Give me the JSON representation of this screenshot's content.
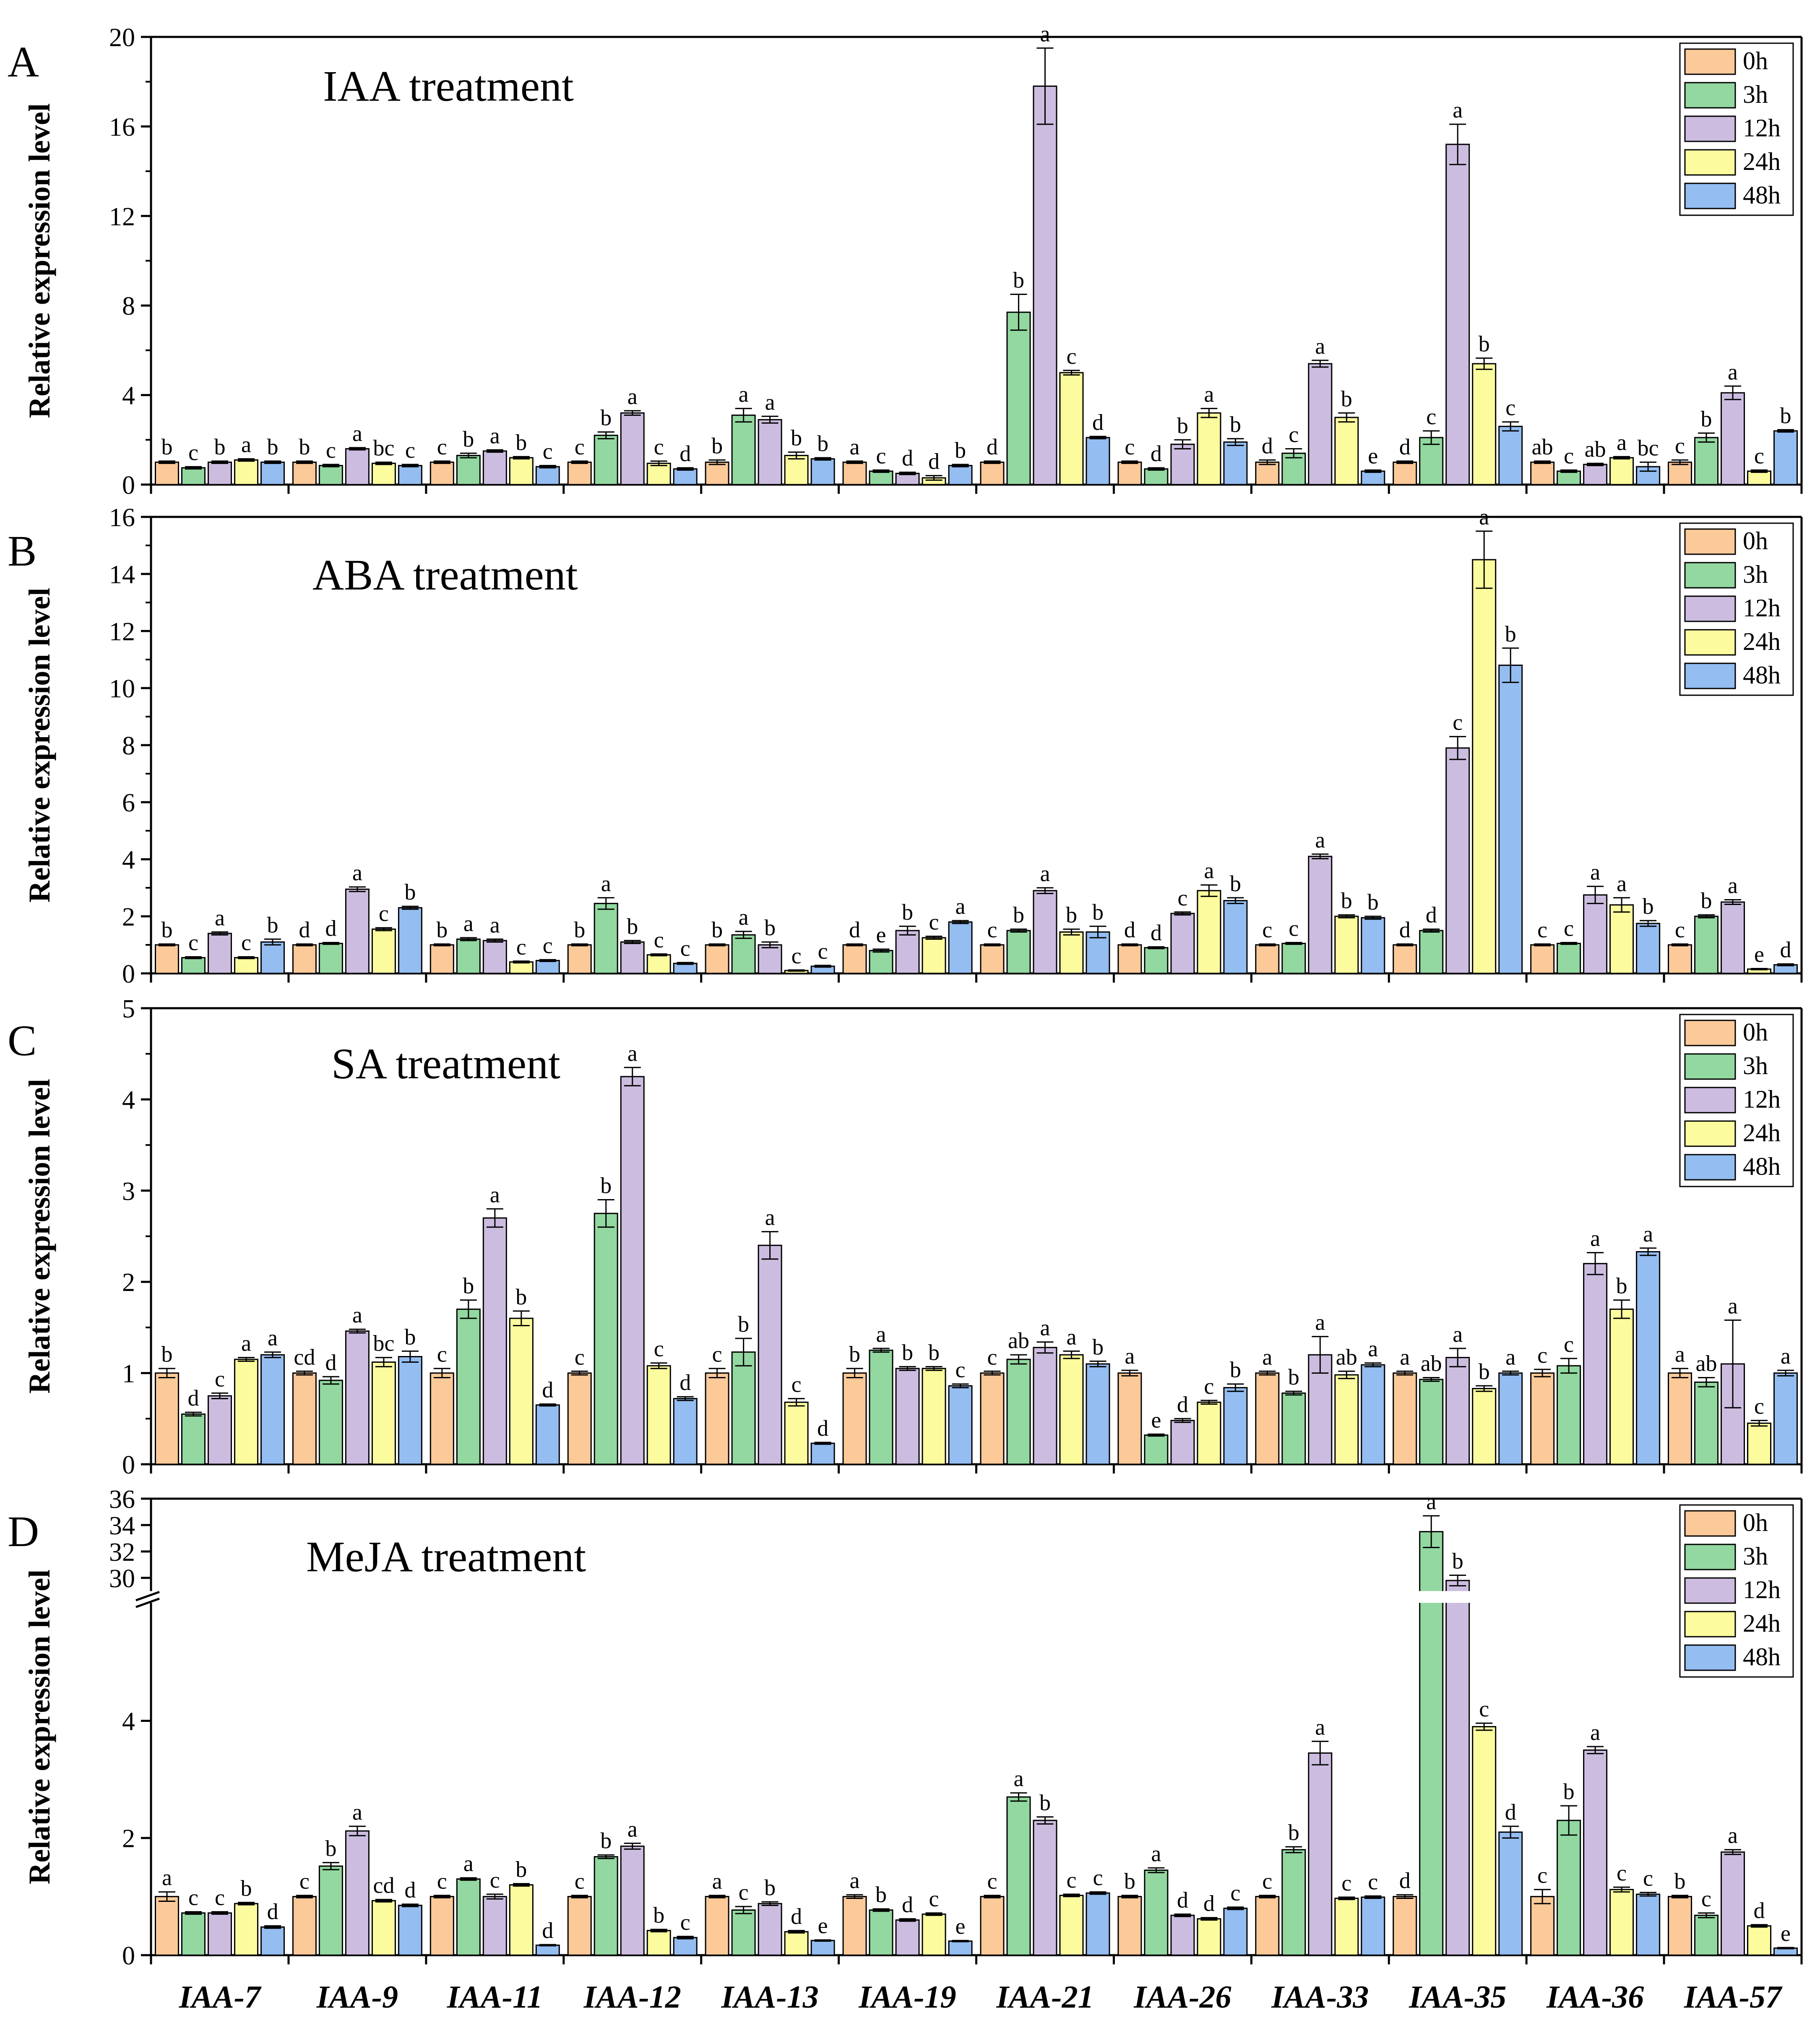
{
  "figure": {
    "categories": [
      "IAA-7",
      "IAA-9",
      "IAA-11",
      "IAA-12",
      "IAA-13",
      "IAA-19",
      "IAA-21",
      "IAA-26",
      "IAA-33",
      "IAA-35",
      "IAA-36",
      "IAA-57"
    ],
    "legend": [
      "0h",
      "3h",
      "12h",
      "24h",
      "48h"
    ],
    "colors": [
      "#fcc999",
      "#92d8a0",
      "#ccbde0",
      "#fcfc9e",
      "#94bdf1"
    ],
    "ylabel": "Relative expression level"
  },
  "chart_data": [
    {
      "type": "bar",
      "panel": "A",
      "title": "IAA treatment",
      "ylabel": "Relative expression level",
      "ylim": [
        0,
        20
      ],
      "yticks": [
        0,
        4,
        8,
        12,
        16,
        20
      ],
      "categories": [
        "IAA-7",
        "IAA-9",
        "IAA-11",
        "IAA-12",
        "IAA-13",
        "IAA-19",
        "IAA-21",
        "IAA-26",
        "IAA-33",
        "IAA-35",
        "IAA-36",
        "IAA-57"
      ],
      "series": [
        {
          "name": "0h",
          "values": [
            1.0,
            1.0,
            1.0,
            1.0,
            1.0,
            1.0,
            1.0,
            1.0,
            1.0,
            1.0,
            1.0,
            1.0
          ],
          "errors": [
            0.05,
            0.05,
            0.05,
            0.05,
            0.1,
            0.05,
            0.05,
            0.05,
            0.1,
            0.05,
            0.05,
            0.1
          ]
        },
        {
          "name": "3h",
          "values": [
            0.75,
            0.85,
            1.3,
            2.2,
            3.1,
            0.6,
            7.7,
            0.7,
            1.4,
            2.1,
            0.6,
            2.1
          ],
          "errors": [
            0.05,
            0.05,
            0.1,
            0.15,
            0.3,
            0.05,
            0.8,
            0.05,
            0.2,
            0.3,
            0.05,
            0.2
          ]
        },
        {
          "name": "12h",
          "values": [
            1.0,
            1.6,
            1.5,
            3.2,
            2.9,
            0.5,
            17.8,
            1.8,
            5.4,
            15.2,
            0.9,
            4.1
          ],
          "errors": [
            0.05,
            0.05,
            0.05,
            0.1,
            0.15,
            0.05,
            1.7,
            0.2,
            0.15,
            0.9,
            0.05,
            0.3
          ]
        },
        {
          "name": "24h",
          "values": [
            1.1,
            0.95,
            1.2,
            0.95,
            1.3,
            0.3,
            5.0,
            3.2,
            3.0,
            5.4,
            1.2,
            0.6
          ],
          "errors": [
            0.05,
            0.05,
            0.05,
            0.1,
            0.15,
            0.1,
            0.1,
            0.2,
            0.2,
            0.25,
            0.05,
            0.05
          ]
        },
        {
          "name": "48h",
          "values": [
            1.0,
            0.85,
            0.8,
            0.7,
            1.15,
            0.85,
            2.1,
            1.9,
            0.6,
            2.6,
            0.8,
            2.4
          ],
          "errors": [
            0.05,
            0.05,
            0.05,
            0.05,
            0.05,
            0.05,
            0.05,
            0.15,
            0.05,
            0.2,
            0.2,
            0.05
          ]
        }
      ],
      "letters": [
        [
          "b",
          "c",
          "b",
          "a",
          "b"
        ],
        [
          "b",
          "c",
          "a",
          "bc",
          "c"
        ],
        [
          "c",
          "b",
          "a",
          "b",
          "c"
        ],
        [
          "c",
          "b",
          "a",
          "c",
          "d"
        ],
        [
          "b",
          "a",
          "a",
          "b",
          "b"
        ],
        [
          "a",
          "c",
          "d",
          "d",
          "b"
        ],
        [
          "d",
          "b",
          "a",
          "c",
          "d"
        ],
        [
          "c",
          "d",
          "b",
          "a",
          "b"
        ],
        [
          "d",
          "c",
          "a",
          "b",
          "e"
        ],
        [
          "d",
          "c",
          "a",
          "b",
          "c"
        ],
        [
          "ab",
          "c",
          "ab",
          "a",
          "bc"
        ],
        [
          "c",
          "b",
          "a",
          "c",
          "b"
        ]
      ]
    },
    {
      "type": "bar",
      "panel": "B",
      "title": "ABA treatment",
      "ylabel": "Relative expression level",
      "ylim": [
        0,
        16
      ],
      "yticks": [
        0,
        2,
        4,
        6,
        8,
        10,
        12,
        14,
        16
      ],
      "categories": [
        "IAA-7",
        "IAA-9",
        "IAA-11",
        "IAA-12",
        "IAA-13",
        "IAA-19",
        "IAA-21",
        "IAA-26",
        "IAA-33",
        "IAA-35",
        "IAA-36",
        "IAA-57"
      ],
      "series": [
        {
          "name": "0h",
          "values": [
            1.0,
            1.0,
            1.0,
            1.0,
            1.0,
            1.0,
            1.0,
            1.0,
            1.0,
            1.0,
            1.0,
            1.0
          ],
          "errors": [
            0.03,
            0.03,
            0.03,
            0.03,
            0.03,
            0.03,
            0.03,
            0.03,
            0.03,
            0.03,
            0.03,
            0.03
          ]
        },
        {
          "name": "3h",
          "values": [
            0.55,
            1.05,
            1.2,
            2.45,
            1.35,
            0.8,
            1.5,
            0.9,
            1.05,
            1.5,
            1.05,
            2.0
          ],
          "errors": [
            0.03,
            0.03,
            0.05,
            0.2,
            0.12,
            0.05,
            0.05,
            0.03,
            0.03,
            0.05,
            0.03,
            0.05
          ]
        },
        {
          "name": "12h",
          "values": [
            1.4,
            2.95,
            1.15,
            1.1,
            1.0,
            1.5,
            2.9,
            2.1,
            4.1,
            7.9,
            2.75,
            2.5
          ],
          "errors": [
            0.05,
            0.08,
            0.05,
            0.05,
            0.1,
            0.15,
            0.1,
            0.05,
            0.08,
            0.4,
            0.3,
            0.08
          ]
        },
        {
          "name": "24h",
          "values": [
            0.55,
            1.55,
            0.4,
            0.65,
            0.1,
            1.25,
            1.45,
            2.9,
            2.0,
            14.5,
            2.4,
            0.15
          ],
          "errors": [
            0.03,
            0.05,
            0.03,
            0.03,
            0.02,
            0.05,
            0.1,
            0.2,
            0.05,
            1.0,
            0.25,
            0.02
          ]
        },
        {
          "name": "48h",
          "values": [
            1.1,
            2.3,
            0.45,
            0.35,
            0.25,
            1.8,
            1.45,
            2.55,
            1.95,
            10.8,
            1.75,
            0.3
          ],
          "errors": [
            0.1,
            0.05,
            0.03,
            0.03,
            0.03,
            0.05,
            0.2,
            0.1,
            0.05,
            0.6,
            0.1,
            0.03
          ]
        }
      ],
      "letters": [
        [
          "b",
          "c",
          "a",
          "c",
          "b"
        ],
        [
          "d",
          "d",
          "a",
          "c",
          "b"
        ],
        [
          "b",
          "a",
          "a",
          "c",
          "c"
        ],
        [
          "b",
          "a",
          "b",
          "c",
          "c"
        ],
        [
          "b",
          "a",
          "b",
          "c",
          "c"
        ],
        [
          "d",
          "e",
          "b",
          "c",
          "a"
        ],
        [
          "c",
          "b",
          "a",
          "b",
          "b"
        ],
        [
          "d",
          "d",
          "c",
          "a",
          "b"
        ],
        [
          "c",
          "c",
          "a",
          "b",
          "b"
        ],
        [
          "d",
          "d",
          "c",
          "a",
          "b"
        ],
        [
          "c",
          "c",
          "a",
          "a",
          "b"
        ],
        [
          "c",
          "b",
          "a",
          "e",
          "d"
        ]
      ]
    },
    {
      "type": "bar",
      "panel": "C",
      "title": "SA treatment",
      "ylabel": "Relative expression level",
      "ylim": [
        0,
        5
      ],
      "yticks": [
        0,
        1,
        2,
        3,
        4,
        5
      ],
      "categories": [
        "IAA-7",
        "IAA-9",
        "IAA-11",
        "IAA-12",
        "IAA-13",
        "IAA-19",
        "IAA-21",
        "IAA-26",
        "IAA-33",
        "IAA-35",
        "IAA-36",
        "IAA-57"
      ],
      "series": [
        {
          "name": "0h",
          "values": [
            1.0,
            1.0,
            1.0,
            1.0,
            1.0,
            1.0,
            1.0,
            1.0,
            1.0,
            1.0,
            1.0,
            1.0
          ],
          "errors": [
            0.05,
            0.02,
            0.05,
            0.02,
            0.05,
            0.05,
            0.02,
            0.03,
            0.02,
            0.02,
            0.04,
            0.05
          ]
        },
        {
          "name": "3h",
          "values": [
            0.55,
            0.92,
            1.7,
            2.75,
            1.23,
            1.25,
            1.15,
            0.32,
            0.78,
            0.93,
            1.08,
            0.9
          ],
          "errors": [
            0.02,
            0.04,
            0.1,
            0.15,
            0.15,
            0.02,
            0.05,
            0.01,
            0.02,
            0.02,
            0.08,
            0.05
          ]
        },
        {
          "name": "12h",
          "values": [
            0.75,
            1.46,
            2.7,
            4.25,
            2.4,
            1.05,
            1.28,
            0.48,
            1.2,
            1.17,
            2.2,
            1.1
          ],
          "errors": [
            0.03,
            0.02,
            0.1,
            0.1,
            0.15,
            0.02,
            0.06,
            0.02,
            0.2,
            0.1,
            0.12,
            0.48
          ]
        },
        {
          "name": "24h",
          "values": [
            1.15,
            1.12,
            1.6,
            1.08,
            0.68,
            1.05,
            1.2,
            0.68,
            0.98,
            0.83,
            1.7,
            0.45
          ],
          "errors": [
            0.02,
            0.05,
            0.08,
            0.03,
            0.04,
            0.02,
            0.04,
            0.02,
            0.04,
            0.03,
            0.1,
            0.03
          ]
        },
        {
          "name": "48h",
          "values": [
            1.2,
            1.18,
            0.65,
            0.72,
            0.23,
            0.86,
            1.1,
            0.84,
            1.09,
            1.0,
            2.33,
            1.0
          ],
          "errors": [
            0.03,
            0.06,
            0.01,
            0.02,
            0.01,
            0.02,
            0.03,
            0.04,
            0.02,
            0.02,
            0.04,
            0.03
          ]
        }
      ],
      "letters": [
        [
          "b",
          "d",
          "c",
          "a",
          "a"
        ],
        [
          "cd",
          "d",
          "a",
          "bc",
          "b"
        ],
        [
          "c",
          "b",
          "a",
          "b",
          "d"
        ],
        [
          "c",
          "b",
          "a",
          "c",
          "d"
        ],
        [
          "c",
          "b",
          "a",
          "c",
          "d"
        ],
        [
          "b",
          "a",
          "b",
          "b",
          "c"
        ],
        [
          "c",
          "ab",
          "a",
          "a",
          "b"
        ],
        [
          "a",
          "e",
          "d",
          "c",
          "b"
        ],
        [
          "a",
          "b",
          "a",
          "ab",
          "a"
        ],
        [
          "a",
          "ab",
          "a",
          "b",
          "a"
        ],
        [
          "c",
          "c",
          "a",
          "b",
          "a"
        ],
        [
          "a",
          "ab",
          "a",
          "c",
          "a"
        ]
      ]
    },
    {
      "type": "bar",
      "panel": "D",
      "title": "MeJA treatment",
      "ylabel": "Relative expression level",
      "ylim": [
        0,
        36
      ],
      "axis_break": [
        6,
        29
      ],
      "yticks": [
        0,
        2,
        4,
        30,
        32,
        34,
        36
      ],
      "categories": [
        "IAA-7",
        "IAA-9",
        "IAA-11",
        "IAA-12",
        "IAA-13",
        "IAA-19",
        "IAA-21",
        "IAA-26",
        "IAA-33",
        "IAA-35",
        "IAA-36",
        "IAA-57"
      ],
      "series": [
        {
          "name": "0h",
          "values": [
            1.0,
            1.0,
            1.0,
            1.0,
            1.0,
            1.0,
            1.0,
            1.0,
            1.0,
            1.0,
            1.0,
            1.0
          ],
          "errors": [
            0.08,
            0.02,
            0.02,
            0.02,
            0.02,
            0.03,
            0.02,
            0.02,
            0.02,
            0.03,
            0.12,
            0.02
          ]
        },
        {
          "name": "3h",
          "values": [
            0.72,
            1.52,
            1.3,
            1.68,
            0.77,
            0.77,
            2.7,
            1.45,
            1.8,
            33.5,
            2.3,
            0.68
          ],
          "errors": [
            0.02,
            0.06,
            0.02,
            0.03,
            0.06,
            0.02,
            0.07,
            0.04,
            0.05,
            1.2,
            0.25,
            0.04
          ]
        },
        {
          "name": "12h",
          "values": [
            0.72,
            2.12,
            1.0,
            1.86,
            0.88,
            0.6,
            2.3,
            0.68,
            3.45,
            29.8,
            3.5,
            1.76
          ],
          "errors": [
            0.02,
            0.08,
            0.04,
            0.05,
            0.03,
            0.02,
            0.06,
            0.02,
            0.2,
            0.4,
            0.06,
            0.04
          ]
        },
        {
          "name": "24h",
          "values": [
            0.88,
            0.93,
            1.2,
            0.42,
            0.4,
            0.7,
            1.02,
            0.62,
            0.97,
            3.9,
            1.12,
            0.5
          ],
          "errors": [
            0.02,
            0.02,
            0.02,
            0.02,
            0.02,
            0.02,
            0.02,
            0.02,
            0.02,
            0.06,
            0.04,
            0.02
          ]
        },
        {
          "name": "48h",
          "values": [
            0.48,
            0.85,
            0.17,
            0.3,
            0.25,
            0.24,
            1.06,
            0.8,
            0.99,
            2.1,
            1.04,
            0.12
          ],
          "errors": [
            0.02,
            0.02,
            0.01,
            0.02,
            0.01,
            0.01,
            0.02,
            0.02,
            0.02,
            0.1,
            0.03,
            0.01
          ]
        }
      ],
      "letters": [
        [
          "a",
          "c",
          "c",
          "b",
          "d"
        ],
        [
          "c",
          "b",
          "a",
          "cd",
          "d"
        ],
        [
          "c",
          "a",
          "c",
          "b",
          "d"
        ],
        [
          "c",
          "b",
          "a",
          "b",
          "c"
        ],
        [
          "a",
          "c",
          "b",
          "d",
          "e"
        ],
        [
          "a",
          "b",
          "d",
          "c",
          "e"
        ],
        [
          "c",
          "a",
          "b",
          "c",
          "c"
        ],
        [
          "b",
          "a",
          "d",
          "d",
          "c"
        ],
        [
          "c",
          "b",
          "a",
          "c",
          "c"
        ],
        [
          "d",
          "a",
          "b",
          "c",
          "d"
        ],
        [
          "c",
          "b",
          "a",
          "c",
          "c"
        ],
        [
          "b",
          "c",
          "a",
          "d",
          "e"
        ]
      ]
    }
  ]
}
